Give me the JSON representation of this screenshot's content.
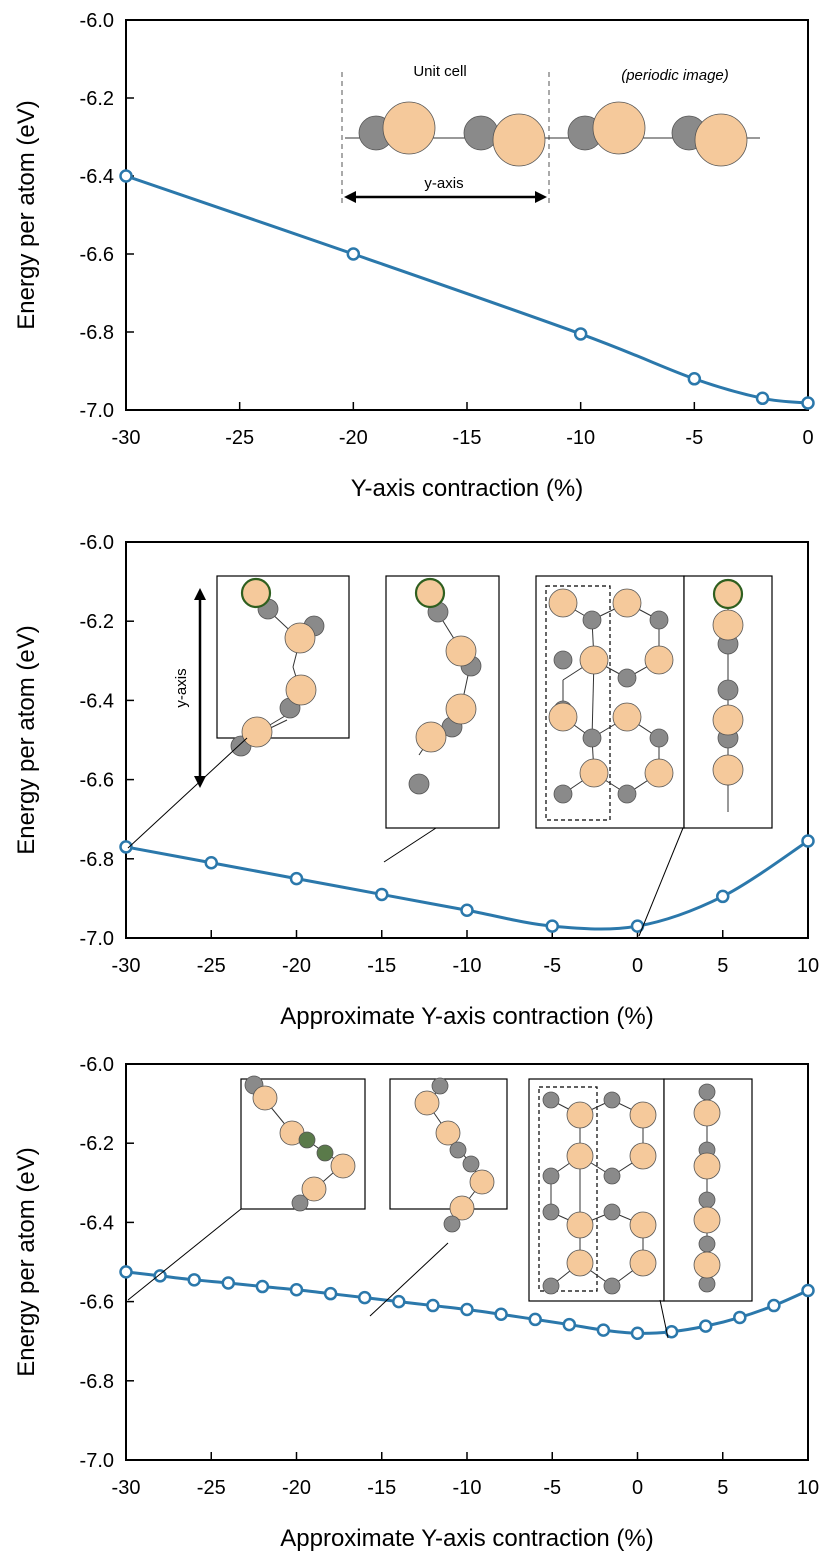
{
  "colors": {
    "line": "#2b78ab",
    "marker_fill": "#ffffff",
    "axis": "#000000",
    "atom_light": "#f5c99b",
    "atom_dark": "#8a8a8a",
    "highlight": "#2f5f1f"
  },
  "chart_data": [
    {
      "type": "line",
      "xlabel": "Y-axis contraction (%)",
      "ylabel": "Energy per atom (eV)",
      "xlim": [
        -30,
        0
      ],
      "ylim": [
        -7.0,
        -6.0
      ],
      "xticks": [
        "-30",
        "-25",
        "-20",
        "-15",
        "-10",
        "-5",
        "0"
      ],
      "yticks": [
        "-6.0",
        "-6.2",
        "-6.4",
        "-6.6",
        "-6.8",
        "-7.0"
      ],
      "x": [
        -30,
        -20,
        -10,
        -5,
        -2,
        0
      ],
      "y": [
        -6.4,
        -6.6,
        -6.805,
        -6.92,
        -6.97,
        -6.982
      ],
      "annotations": {
        "unit_cell": "Unit cell",
        "periodic_image": "(periodic image)",
        "axis_arrow": "y-axis"
      }
    },
    {
      "type": "line",
      "xlabel": "Approximate Y-axis contraction (%)",
      "ylabel": "Energy per atom (eV)",
      "xlim": [
        -30,
        10
      ],
      "ylim": [
        -7.0,
        -6.0
      ],
      "xticks": [
        "-30",
        "-25",
        "-20",
        "-15",
        "-10",
        "-5",
        "0",
        "5",
        "10"
      ],
      "yticks": [
        "-6.0",
        "-6.2",
        "-6.4",
        "-6.6",
        "-6.8",
        "-7.0"
      ],
      "x": [
        -30,
        -25,
        -20,
        -15,
        -10,
        -5,
        0,
        5,
        10
      ],
      "y": [
        -6.77,
        -6.81,
        -6.85,
        -6.89,
        -6.93,
        -6.97,
        -6.97,
        -6.895,
        -6.755
      ],
      "annotations": {
        "axis_arrow": "y-axis"
      }
    },
    {
      "type": "line",
      "xlabel": "Approximate Y-axis contraction (%)",
      "ylabel": "Energy per atom (eV)",
      "xlim": [
        -30,
        10
      ],
      "ylim": [
        -7.0,
        -6.0
      ],
      "xticks": [
        "-30",
        "-25",
        "-20",
        "-15",
        "-10",
        "-5",
        "0",
        "5",
        "10"
      ],
      "yticks": [
        "-6.0",
        "-6.2",
        "-6.4",
        "-6.6",
        "-6.8",
        "-7.0"
      ],
      "x": [
        -30,
        -28,
        -26,
        -24,
        -22,
        -20,
        -18,
        -16,
        -14,
        -12,
        -10,
        -8,
        -6,
        -4,
        -2,
        0,
        2,
        4,
        6,
        8,
        10
      ],
      "y": [
        -6.525,
        -6.535,
        -6.545,
        -6.553,
        -6.562,
        -6.57,
        -6.58,
        -6.59,
        -6.6,
        -6.61,
        -6.62,
        -6.632,
        -6.645,
        -6.658,
        -6.672,
        -6.68,
        -6.676,
        -6.662,
        -6.64,
        -6.61,
        -6.572
      ]
    }
  ]
}
